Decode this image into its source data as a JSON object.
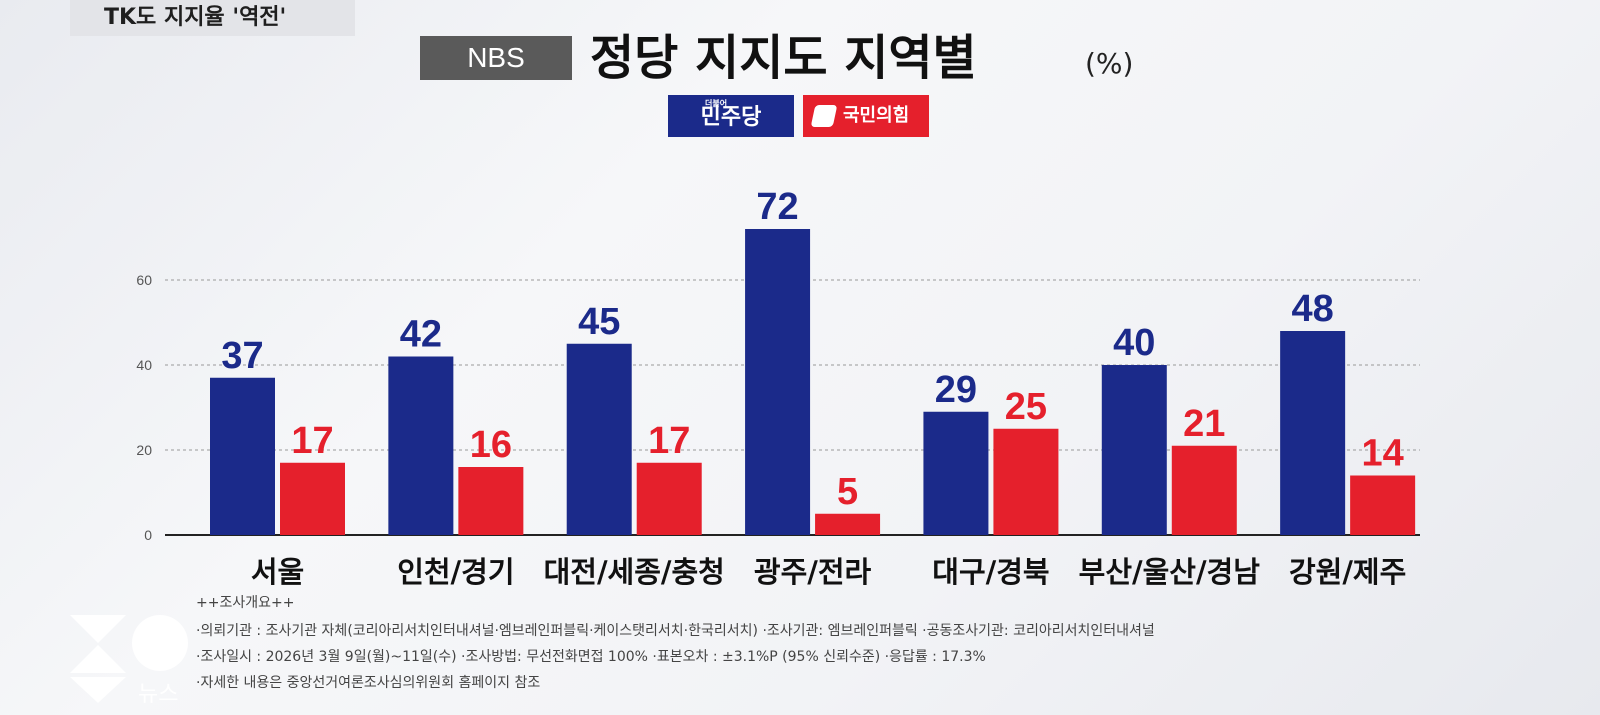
{
  "header": {
    "tag": "TK도 지지율 '역전'",
    "source_box": "NBS",
    "title": "정당 지지도 지역별",
    "unit": "(%)"
  },
  "legend": {
    "blue_label": "민주당",
    "blue_small": "더불어",
    "red_label": "국민의힘"
  },
  "colors": {
    "democratic_blue": "#1b2a8a",
    "ppp_red": "#e5202c"
  },
  "chart_data": {
    "type": "bar",
    "title": "정당 지지도 지역별",
    "unit": "%",
    "categories": [
      "서울",
      "인천/경기",
      "대전/세종/충청",
      "광주/전라",
      "대구/경북",
      "부산/울산/경남",
      "강원/제주"
    ],
    "series": [
      {
        "name": "민주당",
        "color": "#1b2a8a",
        "values": [
          37,
          42,
          45,
          72,
          29,
          40,
          48
        ]
      },
      {
        "name": "국민의힘",
        "color": "#e5202c",
        "values": [
          17,
          16,
          17,
          5,
          25,
          21,
          14
        ]
      }
    ],
    "yticks": [
      0,
      20,
      40,
      60
    ],
    "ylim": [
      0,
      72
    ],
    "grid": true,
    "data_labels": true
  },
  "footnotes": {
    "heading": "++조사개요++",
    "line1": "·의뢰기관 : 조사기관 자체(코리아리서치인터내셔널·엠브레인퍼블릭·케이스탯리서치·한국리서치)   ·조사기관: 엠브레인퍼블릭   ·공동조사기관: 코리아리서치인터내셔널",
    "line2": "·조사일시 : 2026년 3월 9일(월)~11일(수)   ·조사방법: 무선전화면접 100%   ·표본오차 : ±3.1%P (95% 신뢰수준)   ·응답률 : 17.3%",
    "line3": "·자세한 내용은 중앙선거여론조사심의위원회 홈페이지 참조"
  },
  "broadcaster": {
    "logo_text": "뉴스"
  }
}
